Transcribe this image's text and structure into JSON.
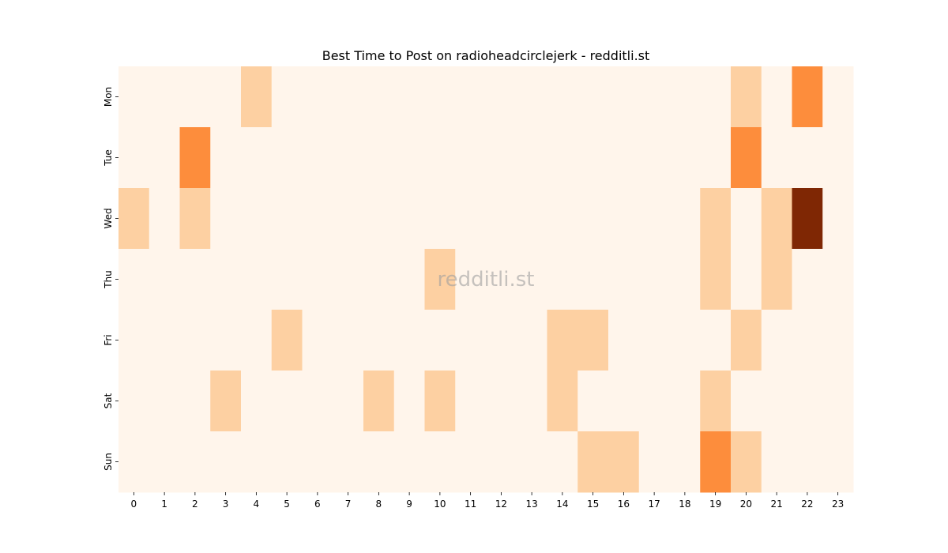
{
  "chart_data": {
    "type": "heatmap",
    "title": "Best Time to Post on radioheadcirclejerk - redditli.st",
    "watermark": "redditli.st",
    "xlabel": "",
    "ylabel": "",
    "x": [
      "0",
      "1",
      "2",
      "3",
      "4",
      "5",
      "6",
      "7",
      "8",
      "9",
      "10",
      "11",
      "12",
      "13",
      "14",
      "15",
      "16",
      "17",
      "18",
      "19",
      "20",
      "21",
      "22",
      "23"
    ],
    "y": [
      "Mon",
      "Tue",
      "Wed",
      "Thu",
      "Fri",
      "Sat",
      "Sun"
    ],
    "values": [
      [
        0,
        0,
        0,
        0,
        1,
        0,
        0,
        0,
        0,
        0,
        0,
        0,
        0,
        0,
        0,
        0,
        0,
        0,
        0,
        0,
        1,
        0,
        3,
        0
      ],
      [
        0,
        0,
        3,
        0,
        0,
        0,
        0,
        0,
        0,
        0,
        0,
        0,
        0,
        0,
        0,
        0,
        0,
        0,
        0,
        0,
        3,
        0,
        0,
        0
      ],
      [
        1,
        0,
        1,
        0,
        0,
        0,
        0,
        0,
        0,
        0,
        0,
        0,
        0,
        0,
        0,
        0,
        0,
        0,
        0,
        1,
        0,
        1,
        6,
        0
      ],
      [
        0,
        0,
        0,
        0,
        0,
        0,
        0,
        0,
        0,
        0,
        1,
        0,
        0,
        0,
        0,
        0,
        0,
        0,
        0,
        1,
        0,
        1,
        0,
        0
      ],
      [
        0,
        0,
        0,
        0,
        0,
        1,
        0,
        0,
        0,
        0,
        0,
        0,
        0,
        0,
        1,
        1,
        0,
        0,
        0,
        0,
        1,
        0,
        0,
        0
      ],
      [
        0,
        0,
        0,
        1,
        0,
        0,
        0,
        0,
        1,
        0,
        1,
        0,
        0,
        0,
        1,
        0,
        0,
        0,
        0,
        1,
        0,
        0,
        0,
        0
      ],
      [
        0,
        0,
        0,
        0,
        0,
        0,
        0,
        0,
        0,
        0,
        0,
        0,
        0,
        0,
        0,
        1,
        1,
        0,
        0,
        3,
        1,
        0,
        0,
        0
      ]
    ],
    "colormap": "Oranges",
    "palette": {
      "0": "#fff5eb",
      "1": "#fdd0a2",
      "3": "#fd8d3c",
      "6": "#7f2704"
    },
    "colorbar": false,
    "grid": false
  }
}
